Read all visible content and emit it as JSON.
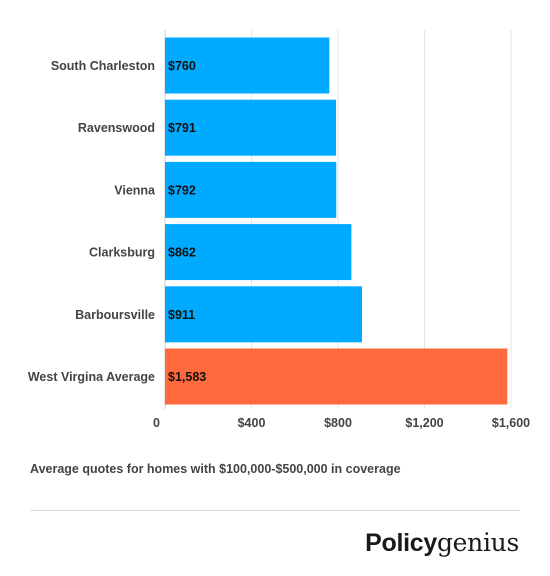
{
  "chart_data": {
    "type": "bar",
    "orientation": "horizontal",
    "categories": [
      "South Charleston",
      "Ravenswood",
      "Vienna",
      "Clarksburg",
      "Barboursville",
      "West Virgina Average"
    ],
    "values": [
      760,
      791,
      792,
      862,
      911,
      1583
    ],
    "value_labels": [
      "$760",
      "$791",
      "$792",
      "$862",
      "$911",
      "$1,583"
    ],
    "colors": [
      "#00aaff",
      "#00aaff",
      "#00aaff",
      "#00aaff",
      "#00aaff",
      "#ff6a3d"
    ],
    "xticks": [
      0,
      400,
      800,
      1200,
      1600
    ],
    "xtick_labels": [
      "0",
      "$400",
      "$800",
      "$1,200",
      "$1,600"
    ],
    "xlim": [
      0,
      1600
    ],
    "grid": true,
    "title": "",
    "xlabel": "",
    "ylabel": ""
  },
  "caption": "Average quotes for homes with $100,000-$500,000 in coverage",
  "logo": {
    "part1": "Policy",
    "part2": "genius"
  }
}
